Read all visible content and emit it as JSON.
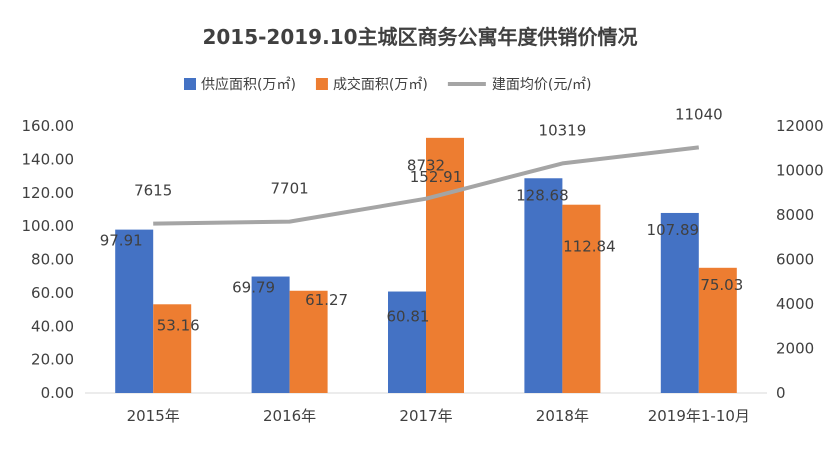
{
  "chart_data": {
    "type": "bar",
    "title": "2015-2019.10主城区商务公寓年度供销价情况",
    "categories": [
      "2015年",
      "2016年",
      "2017年",
      "2018年",
      "2019年1-10月"
    ],
    "series": [
      {
        "name": "供应面积(万㎡)",
        "type": "bar",
        "axis": "left",
        "color": "#4472C4",
        "values": [
          97.91,
          69.79,
          60.81,
          128.68,
          107.89
        ],
        "labels": [
          "97.91",
          "69.79",
          "60.81",
          "128.68",
          "107.89"
        ]
      },
      {
        "name": "成交面积(万㎡)",
        "type": "bar",
        "axis": "left",
        "color": "#ED7D31",
        "values": [
          53.16,
          61.27,
          152.91,
          112.84,
          75.03
        ],
        "labels": [
          "53.16",
          "61.27",
          "152.91",
          "112.84",
          "75.03"
        ]
      },
      {
        "name": "建面均价(元/㎡)",
        "type": "line",
        "axis": "right",
        "color": "#A5A5A5",
        "values": [
          7615,
          7701,
          8732,
          10319,
          11040
        ],
        "labels": [
          "7615",
          "7701",
          "8732",
          "10319",
          "11040"
        ]
      }
    ],
    "y_left": {
      "min": 0,
      "max": 160,
      "step": 20,
      "tick_labels": [
        "0.00",
        "20.00",
        "40.00",
        "60.00",
        "80.00",
        "100.00",
        "120.00",
        "140.00",
        "160.00"
      ]
    },
    "y_right": {
      "min": 0,
      "max": 12000,
      "step": 2000,
      "tick_labels": [
        "0",
        "2000",
        "4000",
        "6000",
        "8000",
        "10000",
        "12000"
      ]
    },
    "legend_position": "top",
    "grid": false
  }
}
